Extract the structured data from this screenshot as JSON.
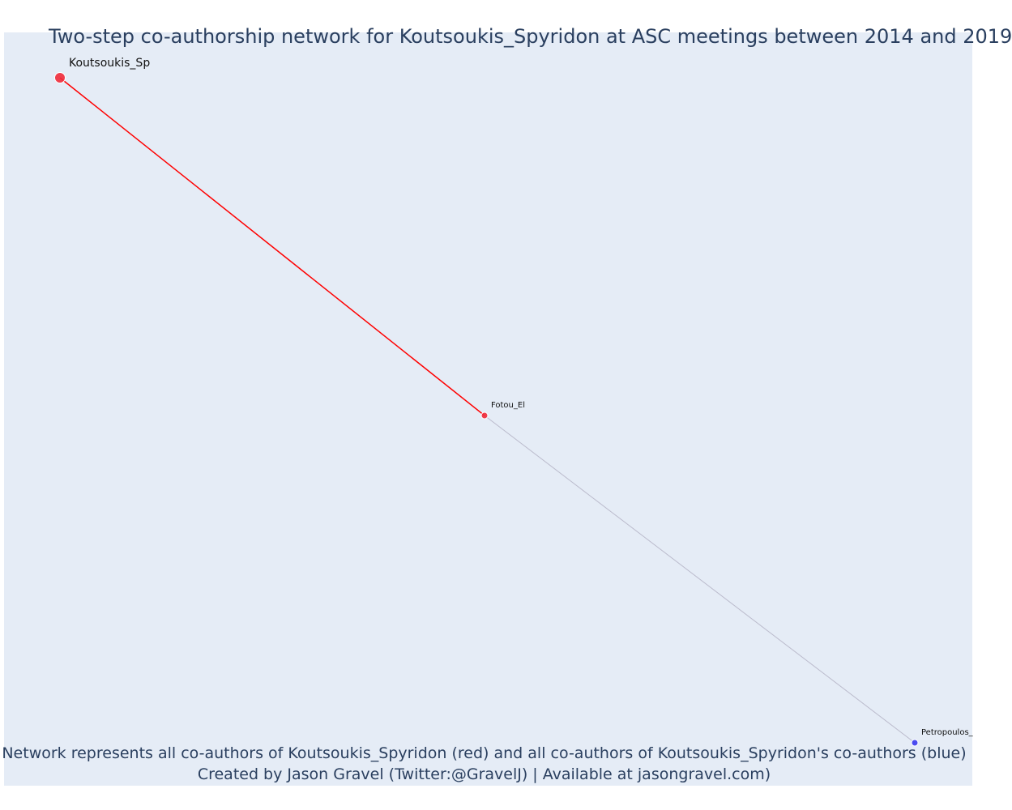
{
  "title": "Two-step co-authorship network for Koutsoukis_Spyridon at ASC meetings between 2014 and 2019",
  "caption_line_1": "Network represents all co-authors of Koutsoukis_Spyridon (red) and all co-authors of Koutsoukis_Spyridon's co-authors (blue)",
  "caption_line_2": "Created by Jason Gravel (Twitter:@GravelJ) | Available at jasongravel.com)",
  "colors": {
    "background": "#e5ecf6",
    "focal_edge": "#ff0000",
    "second_step_edge": "#bbbbcc",
    "first_step_node": "#ef2b3a",
    "second_step_node": "#3b3bf0",
    "text": "#2a3f5f"
  },
  "nodes": [
    {
      "id": "koutsoukis",
      "label": "Koutsoukis_Sp",
      "group": "focal"
    },
    {
      "id": "fotou",
      "label": "Fotou_El",
      "group": "co-author"
    },
    {
      "id": "petropoulos",
      "label": "Petropoulos_",
      "group": "co-author-of-co-author"
    }
  ],
  "edges": [
    {
      "source": "koutsoukis",
      "target": "fotou",
      "type": "direct"
    },
    {
      "source": "fotou",
      "target": "petropoulos",
      "type": "second-step"
    }
  ]
}
